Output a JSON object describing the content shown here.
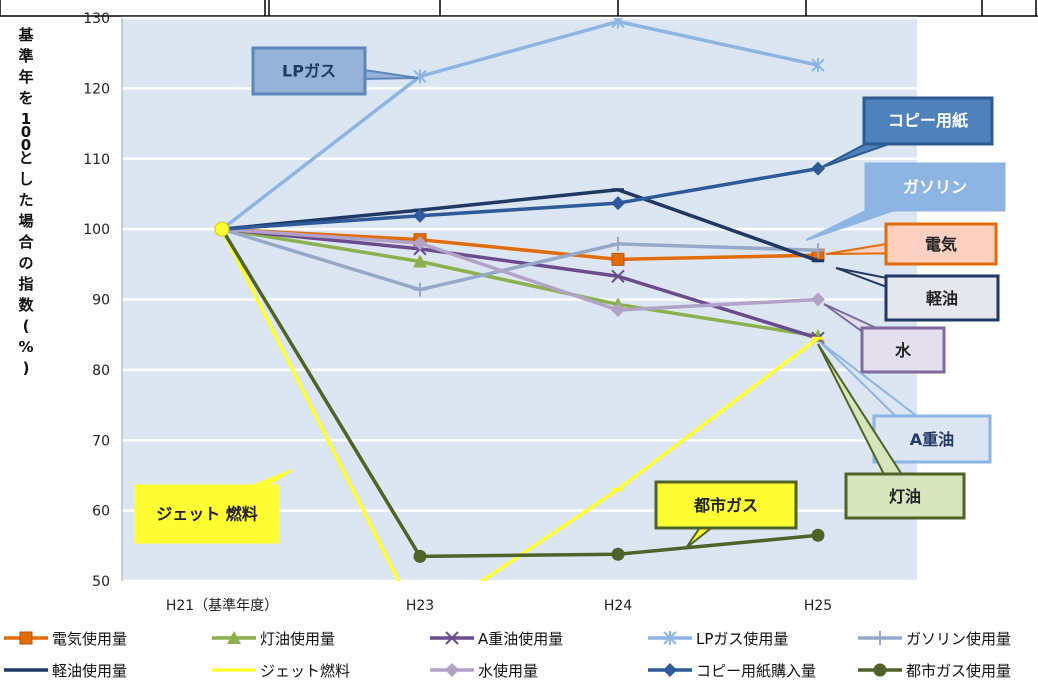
{
  "chart_data": {
    "type": "line",
    "title": "",
    "ylabel": "基準年を100とした場合の指数(%)",
    "xlabel": "",
    "categories": [
      "H21（基準年度）",
      "H23",
      "H24",
      "H25"
    ],
    "ylim": [
      50,
      130
    ],
    "yticks": [
      50,
      60,
      70,
      80,
      90,
      100,
      110,
      120,
      130
    ],
    "grid": true,
    "legend_position": "bottom",
    "series": [
      {
        "name": "電気使用量",
        "color": "#E36C09",
        "marker": "square",
        "values": [
          100,
          98.5,
          95.7,
          96.3
        ]
      },
      {
        "name": "灯油使用量",
        "color": "#8DB04E",
        "marker": "triangle",
        "values": [
          100,
          95.4,
          89.3,
          84.8
        ]
      },
      {
        "name": "A重油使用量",
        "color": "#6A4B8D",
        "marker": "x",
        "values": [
          100,
          97.2,
          93.3,
          84.5
        ]
      },
      {
        "name": "LPガス使用量",
        "color": "#8DB4E2",
        "marker": "asterisk",
        "values": [
          100,
          121.7,
          129.5,
          123.3
        ]
      },
      {
        "name": "ガソリン使用量",
        "color": "#95A8C8",
        "marker": "plus",
        "values": [
          100,
          91.4,
          97.9,
          97
        ]
      },
      {
        "name": "軽油使用量",
        "color": "#1F3864",
        "marker": "dash",
        "values": [
          100,
          102.7,
          105.6,
          95.5
        ]
      },
      {
        "name": "ジェット燃料",
        "color": "#FFFF33",
        "marker": "dash",
        "values": [
          100,
          44,
          63,
          84.5
        ]
      },
      {
        "name": "水使用量",
        "color": "#B3A2C7",
        "marker": "diamond",
        "values": [
          100,
          98,
          88.5,
          90
        ]
      },
      {
        "name": "コピー用紙購入量",
        "color": "#2E5A9A",
        "marker": "diamond",
        "values": [
          100,
          101.9,
          103.7,
          108.6
        ]
      },
      {
        "name": "都市ガス使用量",
        "color": "#4F6228",
        "marker": "circle",
        "values": [
          100,
          53.5,
          53.8,
          56.5
        ]
      }
    ],
    "annotations": [
      {
        "text": "LPガス"
      },
      {
        "text": "コピー用紙"
      },
      {
        "text": "ガソリン"
      },
      {
        "text": "電気"
      },
      {
        "text": "軽油"
      },
      {
        "text": "水"
      },
      {
        "text": "A重油"
      },
      {
        "text": "灯油"
      },
      {
        "text": "都市ガス"
      },
      {
        "text": "ジェット 燃料"
      }
    ]
  }
}
